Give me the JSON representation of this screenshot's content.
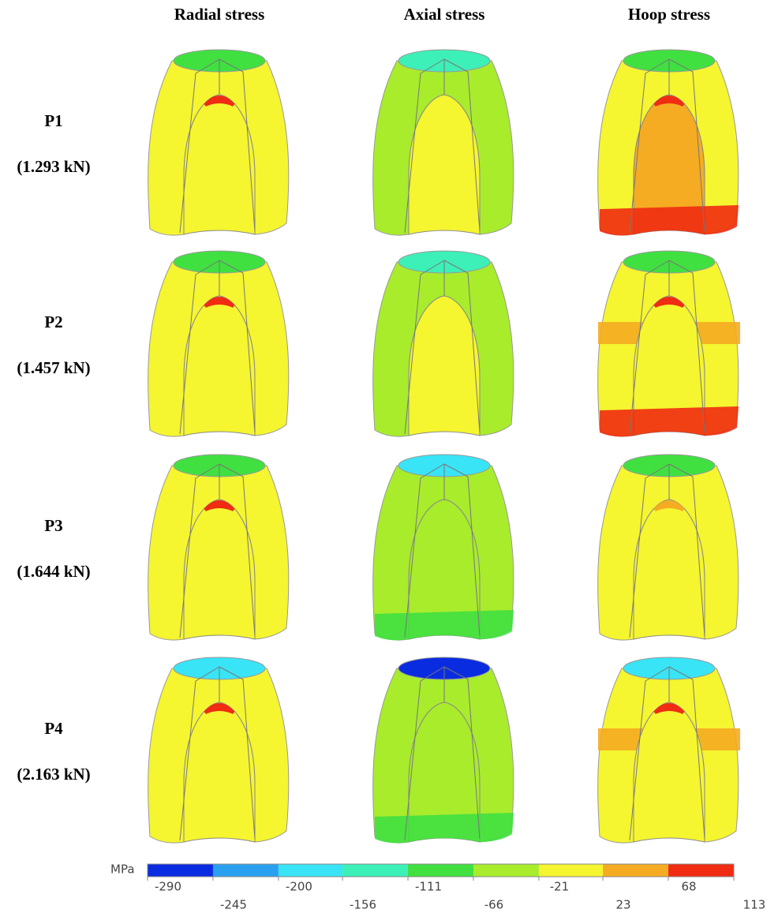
{
  "columns": [
    "Radial stress",
    "Axial stress",
    "Hoop stress"
  ],
  "rows": [
    {
      "label": "P1",
      "load": "(1.293 kN)"
    },
    {
      "label": "P2",
      "load": "(1.457 kN)"
    },
    {
      "label": "P3",
      "load": "(1.644 kN)"
    },
    {
      "label": "P4",
      "load": "(2.163 kN)"
    }
  ],
  "colorbar": {
    "unit": "MPa",
    "ticks": [
      -290,
      -245,
      -200,
      -156,
      -111,
      -66,
      -21,
      23,
      68,
      113
    ],
    "colors": [
      "#0a2ce0",
      "#2aa0f0",
      "#38e4f5",
      "#3cf0b8",
      "#40e040",
      "#a8ec2c",
      "#f5f530",
      "#f5ac22",
      "#f02c12"
    ]
  }
}
